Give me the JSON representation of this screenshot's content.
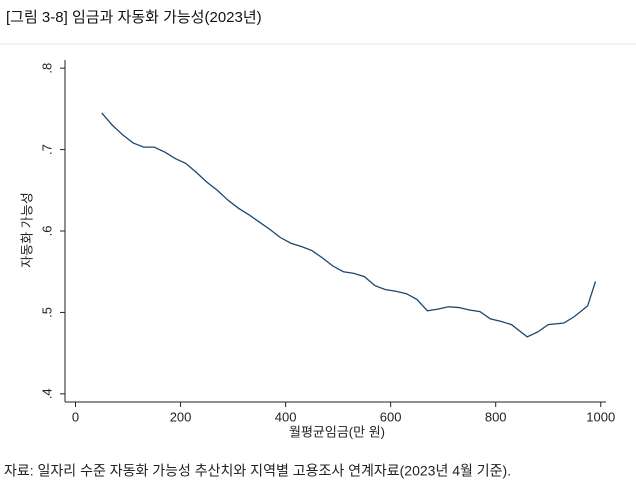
{
  "chart_data": {
    "type": "line",
    "title": "[그림 3-8] 임금과 자동화 가능성(2023년)",
    "xlabel": "월평균임금(만 원)",
    "ylabel": "자동화 가능성",
    "source": "자료: 일자리 수준 자동화 가능성 추산치와 지역별 고용조사 연계자료(2023년 4월 기준).",
    "x": [
      50,
      70,
      90,
      110,
      130,
      150,
      170,
      190,
      210,
      230,
      250,
      270,
      290,
      310,
      330,
      350,
      370,
      390,
      410,
      430,
      450,
      470,
      490,
      510,
      530,
      550,
      570,
      590,
      610,
      630,
      650,
      670,
      690,
      710,
      730,
      750,
      770,
      790,
      810,
      830,
      860,
      880,
      900,
      930,
      950,
      975,
      990
    ],
    "series": [
      {
        "name": "자동화 가능성",
        "color": "#1a476f",
        "values": [
          0.745,
          0.73,
          0.718,
          0.708,
          0.703,
          0.703,
          0.697,
          0.689,
          0.683,
          0.672,
          0.66,
          0.65,
          0.638,
          0.628,
          0.62,
          0.611,
          0.602,
          0.592,
          0.585,
          0.581,
          0.576,
          0.567,
          0.557,
          0.55,
          0.548,
          0.544,
          0.533,
          0.528,
          0.526,
          0.523,
          0.516,
          0.502,
          0.504,
          0.507,
          0.506,
          0.503,
          0.501,
          0.492,
          0.489,
          0.485,
          0.47,
          0.476,
          0.485,
          0.487,
          0.495,
          0.508,
          0.538
        ]
      }
    ],
    "xlim": [
      -20,
      1010
    ],
    "ylim": [
      0.39,
      0.81
    ],
    "xticks": [
      0,
      200,
      400,
      600,
      800,
      1000
    ],
    "yticks": [
      {
        "value": 0.4,
        "label": ".4"
      },
      {
        "value": 0.5,
        "label": ".5"
      },
      {
        "value": 0.6,
        "label": ".6"
      },
      {
        "value": 0.7,
        "label": ".7"
      },
      {
        "value": 0.8,
        "label": ".8"
      }
    ],
    "grid": false
  }
}
